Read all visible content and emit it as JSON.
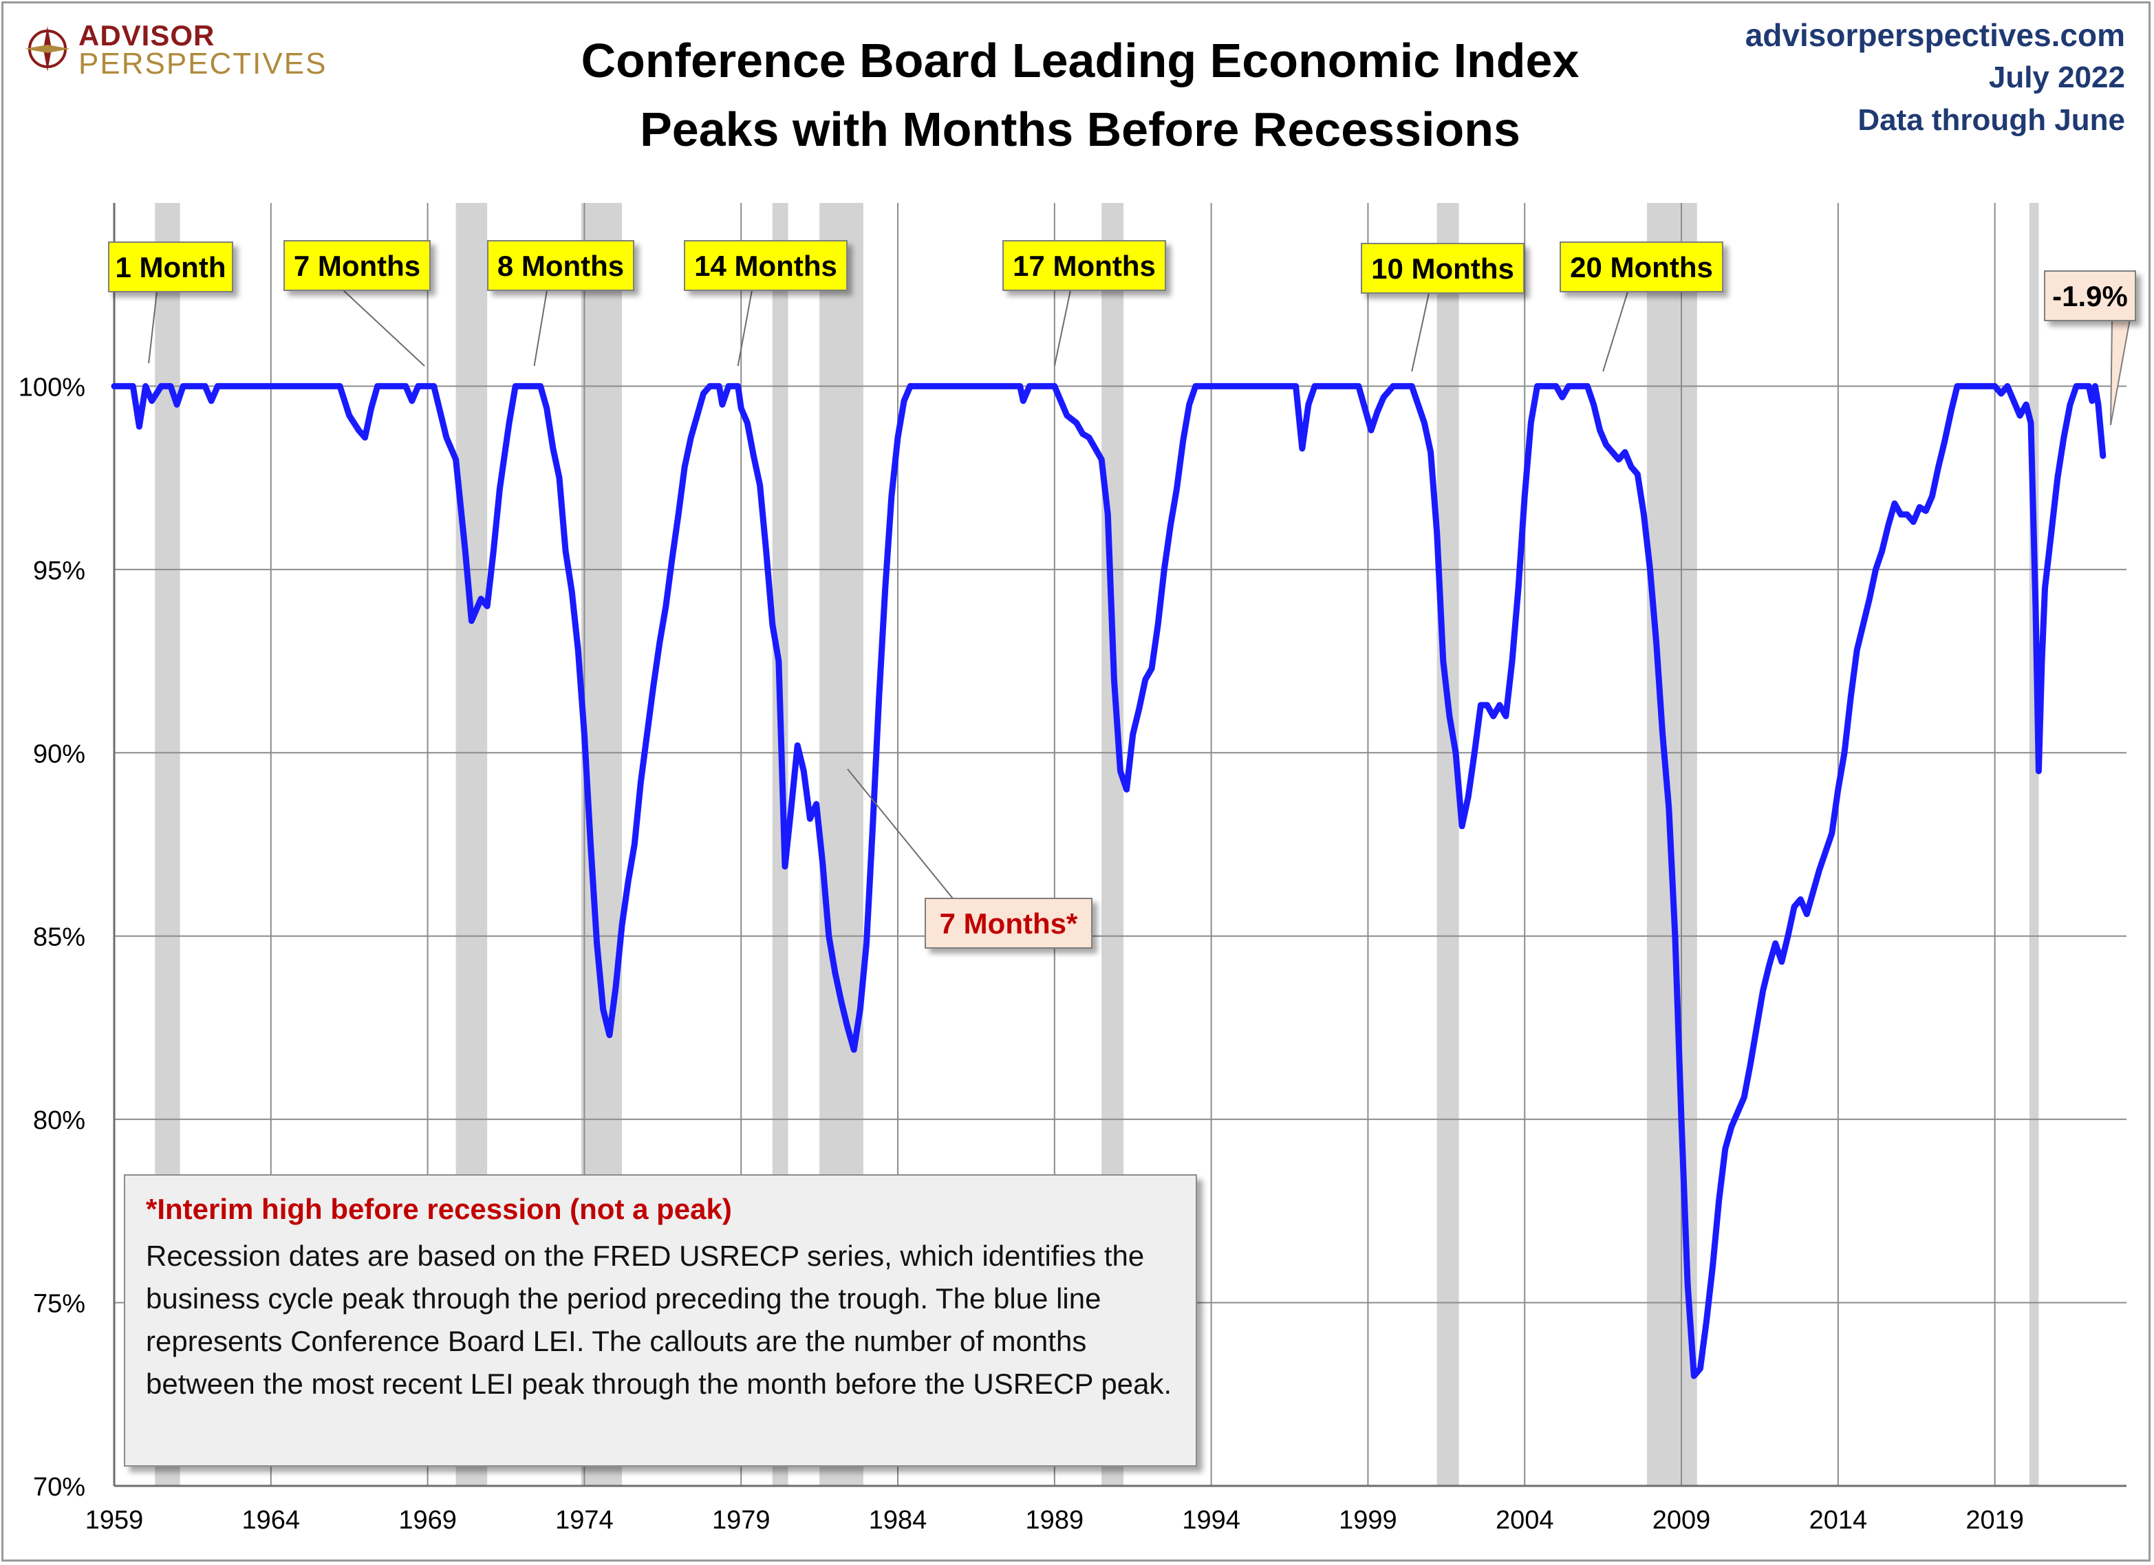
{
  "brand": {
    "line1": "ADVISOR",
    "line2": "PERSPECTIVES"
  },
  "title_line1": "Conference Board Leading Economic Index",
  "title_line2": "Peaks with Months Before Recessions",
  "meta": {
    "source": "advisorperspectives.com",
    "date": "July 2022",
    "through": "Data through June"
  },
  "note": {
    "heading": "*Interim high before recession (not a peak)",
    "body": "Recession dates are based on the FRED USRECP series, which identifies the business cycle peak through the period preceding the trough. The blue line represents Conference Board LEI. The callouts are the number of months between the most recent LEI peak through the month  before the USRECP peak."
  },
  "chart_data": {
    "type": "line",
    "xlim": [
      1959,
      2023.2
    ],
    "ylim": [
      70,
      105
    ],
    "x_ticks": [
      1959,
      1964,
      1969,
      1974,
      1979,
      1984,
      1989,
      1994,
      1999,
      2004,
      2009,
      2014,
      2019
    ],
    "x_tick_labels": [
      "1959",
      "1964",
      "1969",
      "1974",
      "1979",
      "1984",
      "1989",
      "1994",
      "1999",
      "2004",
      "2009",
      "2014",
      "2019"
    ],
    "y_ticks": [
      70,
      75,
      80,
      85,
      90,
      95,
      100
    ],
    "y_tick_labels": [
      "70%",
      "75%",
      "80%",
      "85%",
      "90%",
      "95%",
      "100%"
    ],
    "grid": true,
    "line_color": "#1a1aff",
    "recession_color": "#d3d3d3",
    "recessions": [
      [
        1960.3,
        1961.1
      ],
      [
        1969.9,
        1970.9
      ],
      [
        1973.9,
        1975.2
      ],
      [
        1980.0,
        1980.5
      ],
      [
        1981.5,
        1982.9
      ],
      [
        1990.5,
        1991.2
      ],
      [
        2001.2,
        2001.9
      ],
      [
        2007.9,
        2009.5
      ],
      [
        2020.1,
        2020.4
      ]
    ],
    "series": [
      {
        "values": [
          [
            1959.0,
            100
          ],
          [
            1959.6,
            100
          ],
          [
            1959.8,
            98.9
          ],
          [
            1960.0,
            100
          ],
          [
            1960.2,
            99.6
          ],
          [
            1960.5,
            100
          ],
          [
            1960.8,
            100
          ],
          [
            1961.0,
            99.5
          ],
          [
            1961.2,
            100
          ],
          [
            1961.9,
            100
          ],
          [
            1962.1,
            99.6
          ],
          [
            1962.3,
            100
          ],
          [
            1966.2,
            100
          ],
          [
            1966.5,
            99.2
          ],
          [
            1966.8,
            98.8
          ],
          [
            1967.0,
            98.6
          ],
          [
            1967.2,
            99.4
          ],
          [
            1967.4,
            100
          ],
          [
            1968.3,
            100
          ],
          [
            1968.5,
            99.6
          ],
          [
            1968.7,
            100
          ],
          [
            1969.2,
            100
          ],
          [
            1969.4,
            99.3
          ],
          [
            1969.6,
            98.6
          ],
          [
            1969.9,
            98.0
          ],
          [
            1970.2,
            95.5
          ],
          [
            1970.4,
            93.6
          ],
          [
            1970.7,
            94.2
          ],
          [
            1970.9,
            94.0
          ],
          [
            1971.1,
            95.5
          ],
          [
            1971.3,
            97.2
          ],
          [
            1971.6,
            99.0
          ],
          [
            1971.8,
            100
          ],
          [
            1972.6,
            100
          ],
          [
            1972.8,
            99.4
          ],
          [
            1973.0,
            98.3
          ],
          [
            1973.2,
            97.5
          ],
          [
            1973.4,
            95.5
          ],
          [
            1973.6,
            94.4
          ],
          [
            1973.8,
            92.8
          ],
          [
            1974.0,
            90.5
          ],
          [
            1974.2,
            87.5
          ],
          [
            1974.4,
            84.8
          ],
          [
            1974.6,
            83.0
          ],
          [
            1974.8,
            82.3
          ],
          [
            1975.0,
            83.6
          ],
          [
            1975.2,
            85.3
          ],
          [
            1975.4,
            86.5
          ],
          [
            1975.6,
            87.5
          ],
          [
            1975.8,
            89.2
          ],
          [
            1976.0,
            90.5
          ],
          [
            1976.2,
            91.8
          ],
          [
            1976.4,
            93.0
          ],
          [
            1976.6,
            94.0
          ],
          [
            1976.8,
            95.3
          ],
          [
            1977.0,
            96.5
          ],
          [
            1977.2,
            97.8
          ],
          [
            1977.4,
            98.6
          ],
          [
            1977.6,
            99.2
          ],
          [
            1977.8,
            99.8
          ],
          [
            1978.0,
            100
          ],
          [
            1978.3,
            100
          ],
          [
            1978.4,
            99.5
          ],
          [
            1978.6,
            100
          ],
          [
            1978.9,
            100
          ],
          [
            1979.0,
            99.4
          ],
          [
            1979.2,
            99.0
          ],
          [
            1979.4,
            98.1
          ],
          [
            1979.6,
            97.3
          ],
          [
            1979.8,
            95.5
          ],
          [
            1980.0,
            93.5
          ],
          [
            1980.2,
            92.5
          ],
          [
            1980.4,
            86.9
          ],
          [
            1980.6,
            88.5
          ],
          [
            1980.8,
            90.2
          ],
          [
            1981.0,
            89.5
          ],
          [
            1981.2,
            88.2
          ],
          [
            1981.4,
            88.6
          ],
          [
            1981.6,
            87.0
          ],
          [
            1981.8,
            85.0
          ],
          [
            1982.0,
            84.0
          ],
          [
            1982.2,
            83.2
          ],
          [
            1982.4,
            82.5
          ],
          [
            1982.6,
            81.9
          ],
          [
            1982.8,
            83.0
          ],
          [
            1983.0,
            84.8
          ],
          [
            1983.2,
            88.0
          ],
          [
            1983.4,
            91.5
          ],
          [
            1983.6,
            94.5
          ],
          [
            1983.8,
            97.0
          ],
          [
            1984.0,
            98.6
          ],
          [
            1984.2,
            99.6
          ],
          [
            1984.4,
            100
          ],
          [
            1987.9,
            100
          ],
          [
            1988.0,
            99.6
          ],
          [
            1988.2,
            100
          ],
          [
            1989.0,
            100
          ],
          [
            1989.2,
            99.6
          ],
          [
            1989.4,
            99.2
          ],
          [
            1989.7,
            99.0
          ],
          [
            1989.9,
            98.7
          ],
          [
            1990.1,
            98.6
          ],
          [
            1990.3,
            98.3
          ],
          [
            1990.5,
            98.0
          ],
          [
            1990.7,
            96.5
          ],
          [
            1990.9,
            92.0
          ],
          [
            1991.1,
            89.5
          ],
          [
            1991.3,
            89.0
          ],
          [
            1991.5,
            90.5
          ],
          [
            1991.7,
            91.2
          ],
          [
            1991.9,
            92.0
          ],
          [
            1992.1,
            92.3
          ],
          [
            1992.3,
            93.5
          ],
          [
            1992.5,
            95.0
          ],
          [
            1992.7,
            96.2
          ],
          [
            1992.9,
            97.2
          ],
          [
            1993.1,
            98.5
          ],
          [
            1993.3,
            99.5
          ],
          [
            1993.5,
            100
          ],
          [
            1996.7,
            100
          ],
          [
            1996.9,
            98.3
          ],
          [
            1997.1,
            99.5
          ],
          [
            1997.3,
            100
          ],
          [
            1998.7,
            100
          ],
          [
            1998.9,
            99.4
          ],
          [
            1999.1,
            98.8
          ],
          [
            1999.3,
            99.3
          ],
          [
            1999.5,
            99.7
          ],
          [
            1999.8,
            100
          ],
          [
            2000.4,
            100
          ],
          [
            2000.6,
            99.5
          ],
          [
            2000.8,
            99.0
          ],
          [
            2001.0,
            98.2
          ],
          [
            2001.2,
            96.0
          ],
          [
            2001.4,
            92.5
          ],
          [
            2001.6,
            91.0
          ],
          [
            2001.8,
            90.0
          ],
          [
            2002.0,
            88.0
          ],
          [
            2002.2,
            88.8
          ],
          [
            2002.4,
            90.0
          ],
          [
            2002.6,
            91.3
          ],
          [
            2002.8,
            91.3
          ],
          [
            2003.0,
            91.0
          ],
          [
            2003.2,
            91.3
          ],
          [
            2003.4,
            91.0
          ],
          [
            2003.6,
            92.5
          ],
          [
            2003.8,
            94.5
          ],
          [
            2004.0,
            97.0
          ],
          [
            2004.2,
            99.0
          ],
          [
            2004.4,
            100
          ],
          [
            2005.0,
            100
          ],
          [
            2005.2,
            99.7
          ],
          [
            2005.4,
            100
          ],
          [
            2006.0,
            100
          ],
          [
            2006.2,
            99.5
          ],
          [
            2006.4,
            98.8
          ],
          [
            2006.6,
            98.4
          ],
          [
            2006.8,
            98.2
          ],
          [
            2007.0,
            98.0
          ],
          [
            2007.2,
            98.2
          ],
          [
            2007.4,
            97.8
          ],
          [
            2007.6,
            97.6
          ],
          [
            2007.8,
            96.5
          ],
          [
            2008.0,
            95.0
          ],
          [
            2008.2,
            93.0
          ],
          [
            2008.4,
            90.5
          ],
          [
            2008.6,
            88.5
          ],
          [
            2008.8,
            85.0
          ],
          [
            2009.0,
            80.0
          ],
          [
            2009.2,
            75.5
          ],
          [
            2009.4,
            73.0
          ],
          [
            2009.6,
            73.2
          ],
          [
            2009.8,
            74.5
          ],
          [
            2010.0,
            76.0
          ],
          [
            2010.2,
            77.8
          ],
          [
            2010.4,
            79.2
          ],
          [
            2010.6,
            79.8
          ],
          [
            2010.8,
            80.2
          ],
          [
            2011.0,
            80.6
          ],
          [
            2011.2,
            81.5
          ],
          [
            2011.4,
            82.5
          ],
          [
            2011.6,
            83.5
          ],
          [
            2011.8,
            84.2
          ],
          [
            2012.0,
            84.8
          ],
          [
            2012.2,
            84.3
          ],
          [
            2012.4,
            85.0
          ],
          [
            2012.6,
            85.8
          ],
          [
            2012.8,
            86.0
          ],
          [
            2013.0,
            85.6
          ],
          [
            2013.2,
            86.2
          ],
          [
            2013.4,
            86.8
          ],
          [
            2013.6,
            87.3
          ],
          [
            2013.8,
            87.8
          ],
          [
            2014.0,
            89.0
          ],
          [
            2014.2,
            90.0
          ],
          [
            2014.4,
            91.5
          ],
          [
            2014.6,
            92.8
          ],
          [
            2014.8,
            93.5
          ],
          [
            2015.0,
            94.2
          ],
          [
            2015.2,
            95.0
          ],
          [
            2015.4,
            95.5
          ],
          [
            2015.6,
            96.2
          ],
          [
            2015.8,
            96.8
          ],
          [
            2016.0,
            96.5
          ],
          [
            2016.2,
            96.5
          ],
          [
            2016.4,
            96.3
          ],
          [
            2016.6,
            96.7
          ],
          [
            2016.8,
            96.6
          ],
          [
            2017.0,
            97.0
          ],
          [
            2017.2,
            97.8
          ],
          [
            2017.4,
            98.5
          ],
          [
            2017.6,
            99.3
          ],
          [
            2017.8,
            100
          ],
          [
            2019.0,
            100
          ],
          [
            2019.2,
            99.8
          ],
          [
            2019.4,
            100
          ],
          [
            2019.6,
            99.6
          ],
          [
            2019.8,
            99.2
          ],
          [
            2020.0,
            99.5
          ],
          [
            2020.15,
            99.0
          ],
          [
            2020.3,
            94.0
          ],
          [
            2020.4,
            89.5
          ],
          [
            2020.5,
            92.5
          ],
          [
            2020.6,
            94.5
          ],
          [
            2020.8,
            96.0
          ],
          [
            2021.0,
            97.5
          ],
          [
            2021.2,
            98.6
          ],
          [
            2021.4,
            99.5
          ],
          [
            2021.6,
            100
          ],
          [
            2022.0,
            100
          ],
          [
            2022.1,
            99.6
          ],
          [
            2022.2,
            100
          ],
          [
            2022.3,
            99.5
          ],
          [
            2022.45,
            98.1
          ]
        ]
      }
    ],
    "callouts": [
      {
        "label": "1 Month",
        "style": "yellow",
        "peak_x": 1960.1
      },
      {
        "label": "7 Months",
        "style": "yellow",
        "peak_x": 1968.9
      },
      {
        "label": "8 Months",
        "style": "yellow",
        "peak_x": 1972.4
      },
      {
        "label": "14 Months",
        "style": "yellow",
        "peak_x": 1978.9
      },
      {
        "label": "17 Months",
        "style": "yellow",
        "peak_x": 1989.0
      },
      {
        "label": "10 Months",
        "style": "yellow",
        "peak_x": 2000.4
      },
      {
        "label": "20 Months",
        "style": "yellow",
        "peak_x": 2006.5
      },
      {
        "label": "7 Months*",
        "style": "interim",
        "peak_x": 1981.0
      },
      {
        "label": "-1.9%",
        "style": "latest",
        "peak_x": 2022.5
      }
    ]
  }
}
